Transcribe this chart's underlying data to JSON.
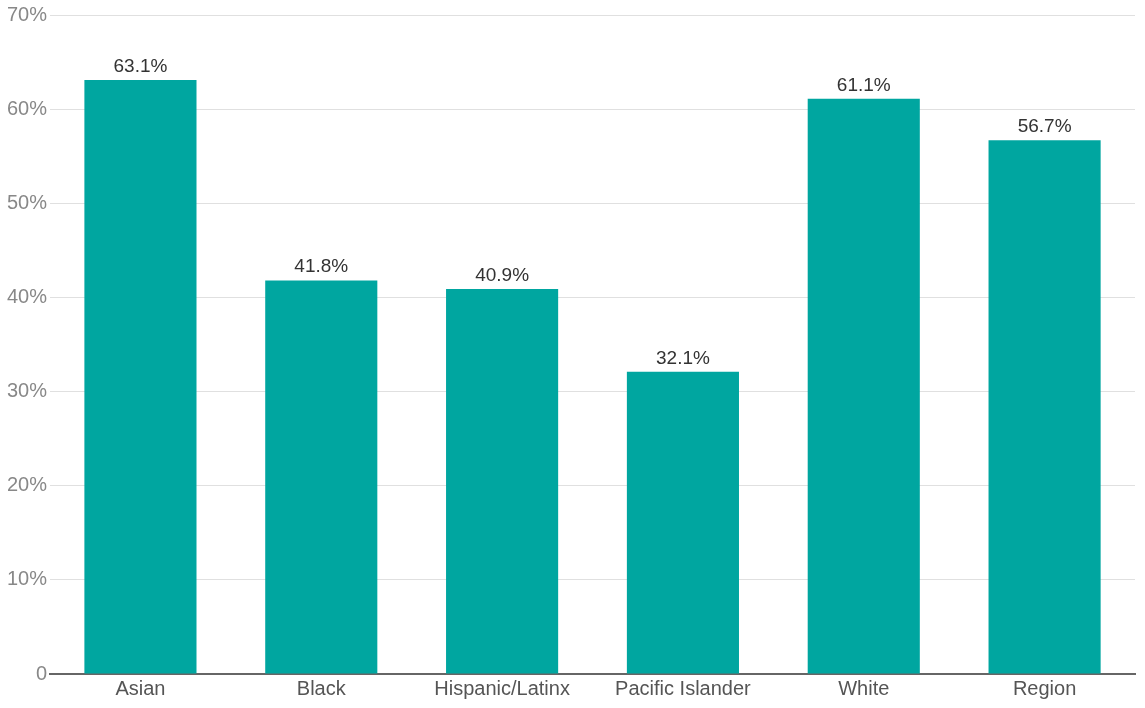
{
  "chart_data": {
    "type": "bar",
    "categories": [
      "Asian",
      "Black",
      "Hispanic/Latinx",
      "Pacific Islander",
      "White",
      "Region"
    ],
    "values": [
      63.1,
      41.8,
      40.9,
      32.1,
      61.1,
      56.7
    ],
    "value_labels": [
      "63.1%",
      "41.8%",
      "40.9%",
      "32.1%",
      "61.1%",
      "56.7%"
    ],
    "color": "#00a6a0",
    "ylim": [
      0,
      70
    ],
    "yticks": [
      0,
      {
        "value": 10,
        "label": "10%"
      },
      {
        "value": 20,
        "label": "20%"
      },
      {
        "value": 30,
        "label": "30%"
      },
      {
        "value": 40,
        "label": "40%"
      },
      {
        "value": 50,
        "label": "50%"
      },
      {
        "value": 60,
        "label": "60%"
      },
      {
        "value": 70,
        "label": "70%"
      }
    ],
    "grid": "y"
  }
}
